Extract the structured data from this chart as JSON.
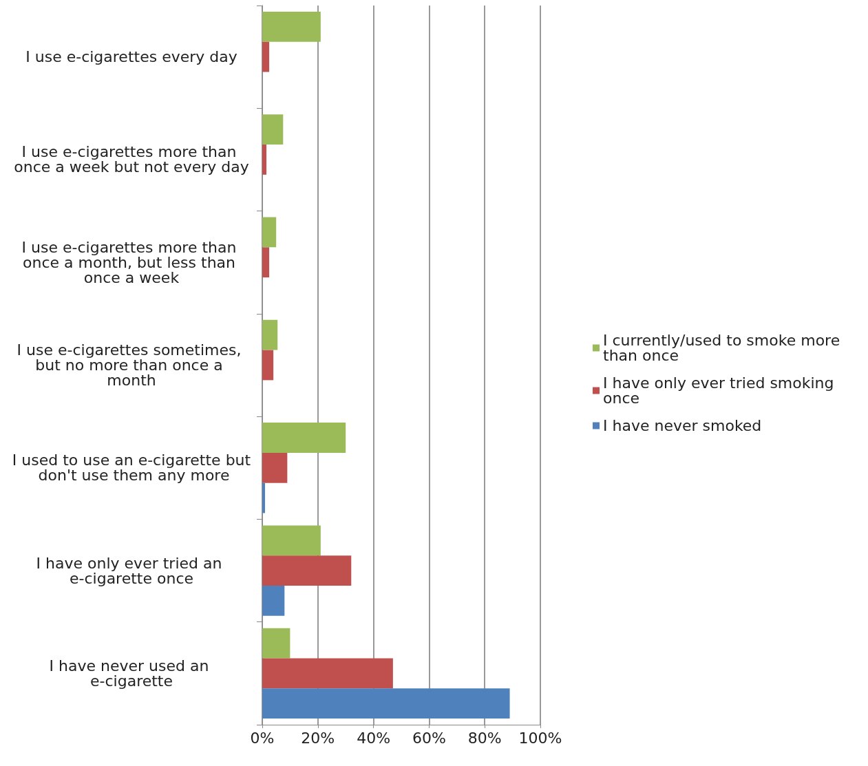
{
  "chart_data": {
    "type": "bar",
    "orientation": "horizontal",
    "categories": [
      "I use e-cigarettes every day",
      "I use e-cigarettes more than once a week but not every day",
      "I use e-cigarettes more than once a month, but less than once a week",
      "I use e-cigarettes sometimes, but no more than once a month",
      "I used to use an e-cigarette but don't use them any more",
      "I have only ever tried an e-cigarette once",
      "I have never used an e-cigarette"
    ],
    "series": [
      {
        "name": "I currently/used to smoke more than once",
        "color": "#9bbb59",
        "values": [
          21,
          7.5,
          5,
          5.5,
          30,
          21,
          10
        ]
      },
      {
        "name": "I have only ever tried smoking once",
        "color": "#c0504d",
        "values": [
          2.5,
          1.5,
          2.5,
          4,
          9,
          32,
          47
        ]
      },
      {
        "name": "I have never smoked",
        "color": "#4f81bd",
        "values": [
          0,
          0,
          0,
          0,
          1,
          8,
          89
        ]
      }
    ],
    "xlim": [
      0,
      100
    ],
    "xticks": [
      {
        "value": 0,
        "label": "0%"
      },
      {
        "value": 20,
        "label": "20%"
      },
      {
        "value": 40,
        "label": "40%"
      },
      {
        "value": 60,
        "label": "60%"
      },
      {
        "value": 80,
        "label": "80%"
      },
      {
        "value": 100,
        "label": "100%"
      }
    ],
    "grid": "x",
    "legend": "right"
  }
}
